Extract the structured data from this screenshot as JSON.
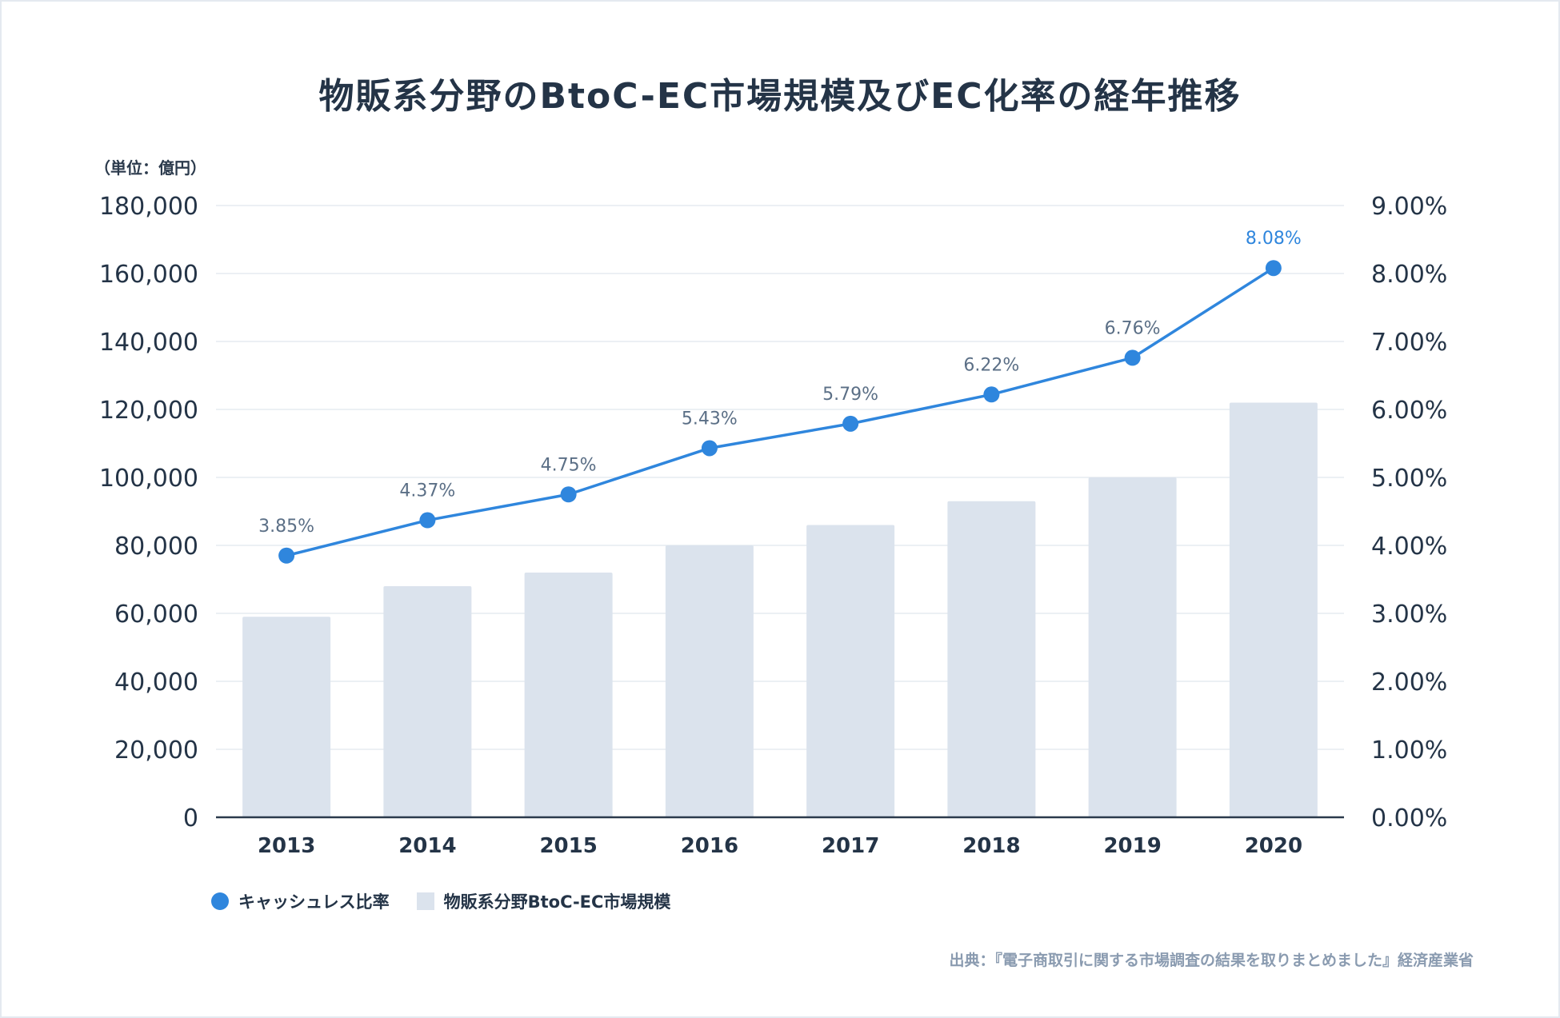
{
  "chart_data": {
    "type": "bar+line",
    "title": "物販系分野のBtoC-EC市場規模及びEC化率の経年推移",
    "unit_label": "（単位：億円）",
    "categories": [
      "2013",
      "2014",
      "2015",
      "2016",
      "2017",
      "2018",
      "2019",
      "2020"
    ],
    "series": [
      {
        "name": "物販系分野BtoC-EC市場規模",
        "type": "bar",
        "axis": "left",
        "values": [
          59000,
          68000,
          72000,
          80000,
          86000,
          93000,
          100000,
          122000
        ]
      },
      {
        "name": "キャッシュレス比率",
        "type": "line",
        "axis": "right",
        "values": [
          3.85,
          4.37,
          4.75,
          5.43,
          5.79,
          6.22,
          6.76,
          8.08
        ],
        "labels": [
          "3.85%",
          "4.37%",
          "4.75%",
          "5.43%",
          "5.79%",
          "6.22%",
          "6.76%",
          "8.08%"
        ]
      }
    ],
    "y_left": {
      "range": [
        0,
        180000
      ],
      "ticks": [
        "0",
        "20,000",
        "40,000",
        "60,000",
        "80,000",
        "100,000",
        "120,000",
        "140,000",
        "160,000",
        "180,000"
      ]
    },
    "y_right": {
      "range": [
        0,
        9
      ],
      "ticks": [
        "0.00%",
        "1.00%",
        "2.00%",
        "3.00%",
        "4.00%",
        "5.00%",
        "6.00%",
        "7.00%",
        "8.00%",
        "9.00%"
      ]
    },
    "grid": true,
    "legend_position": "bottom-left"
  },
  "legend": {
    "line_label": "キャッシュレス比率",
    "bar_label": "物販系分野BtoC-EC市場規模"
  },
  "source": "出典：『電子商取引に関する市場調査の結果を取りまとめました』経済産業省",
  "colors": {
    "line": "#2f86dd",
    "bar": "#dbe3ed",
    "text": "#243447",
    "point_label": "#5b6f86",
    "last_label": "#2f86dd",
    "grid": "#e6ebf1",
    "axis": "#2b3a4c"
  }
}
